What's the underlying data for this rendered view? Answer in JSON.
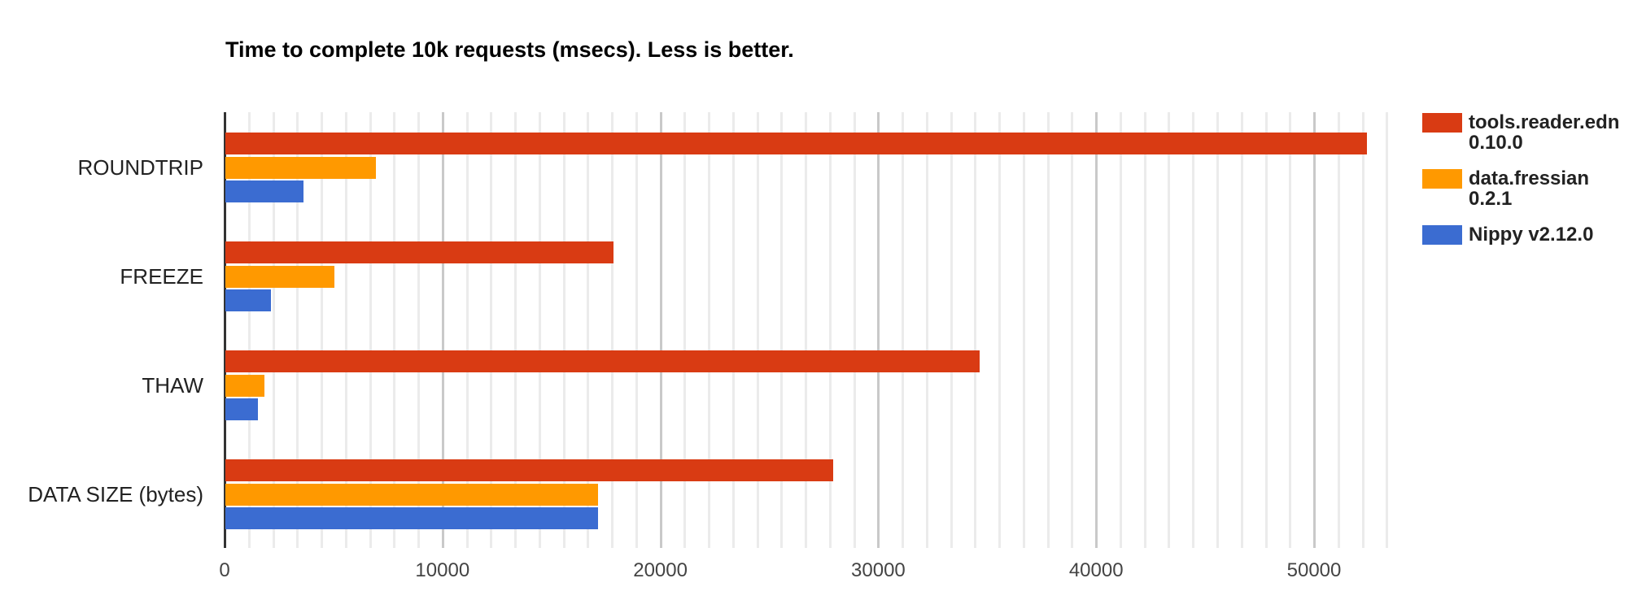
{
  "title": "Time to complete 10k requests (msecs). Less is better.",
  "chart_data": {
    "type": "bar",
    "orientation": "horizontal",
    "title": "Time to complete 10k requests (msecs). Less is better.",
    "categories": [
      "ROUNDTRIP",
      "FREEZE",
      "THAW",
      "DATA SIZE (bytes)"
    ],
    "series": [
      {
        "name": "tools.reader.edn 0.10.0",
        "color": "#d93b13",
        "values": [
          52400,
          17800,
          34600,
          27900
        ]
      },
      {
        "name": "data.fressian 0.2.1",
        "color": "#ff9900",
        "values": [
          6900,
          5000,
          1800,
          17100
        ]
      },
      {
        "name": "Nippy v2.12.0",
        "color": "#3b6cd1",
        "values": [
          3600,
          2100,
          1500,
          17100
        ]
      }
    ],
    "xlabel": "",
    "ylabel": "",
    "xlim": [
      0,
      53360
    ],
    "x_ticks": [
      0,
      10000,
      20000,
      30000,
      40000,
      50000
    ],
    "grid": "on",
    "minor_gridlines_per_major": 9,
    "legend_position": "right"
  },
  "x_axis": {
    "tick_labels": [
      "0",
      "10000",
      "20000",
      "30000",
      "40000",
      "50000"
    ]
  },
  "legend": {
    "items": [
      {
        "line1": "tools.reader.edn",
        "line2": "0.10.0",
        "color": "#d93b13"
      },
      {
        "line1": "data.fressian",
        "line2": "0.2.1",
        "color": "#ff9900"
      },
      {
        "line1": "Nippy v2.12.0",
        "line2": "",
        "color": "#3b6cd1"
      }
    ]
  },
  "colors": {
    "series_red": "#d93b13",
    "series_orange": "#ff9900",
    "series_blue": "#3b6cd1",
    "grid_minor": "#ebebeb",
    "grid_major": "#c9c9c9",
    "axis_line": "#333333",
    "tick_text": "#444444",
    "label_text": "#222222"
  }
}
